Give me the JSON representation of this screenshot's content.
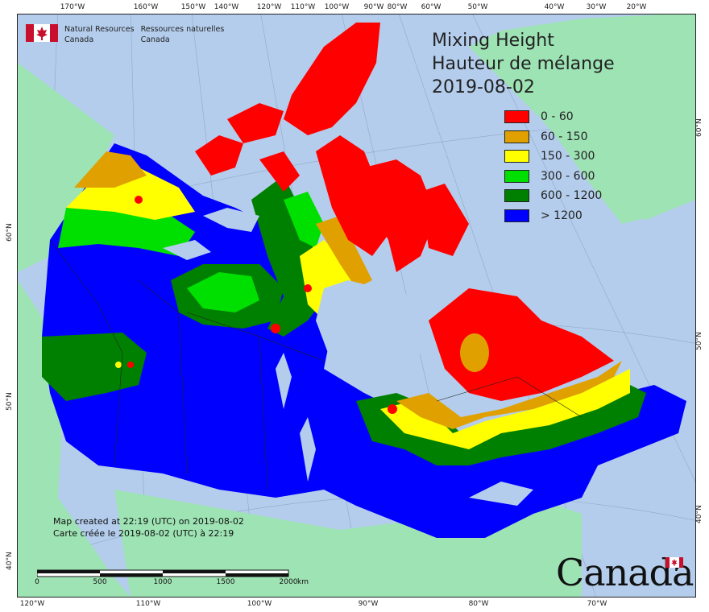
{
  "title": [
    "Mixing Height",
    "Hauteur de mélange",
    "2019-08-02"
  ],
  "agency": {
    "en_line1": "Natural Resources",
    "en_line2": "Canada",
    "fr_line1": "Ressources naturelles",
    "fr_line2": "Canada"
  },
  "legend": [
    {
      "label": "0 - 60",
      "color": "#ff0000"
    },
    {
      "label": "60 - 150",
      "color": "#e0a000"
    },
    {
      "label": "150 - 300",
      "color": "#ffff00"
    },
    {
      "label": "300 - 600",
      "color": "#00e000"
    },
    {
      "label": "600 - 1200",
      "color": "#008000"
    },
    {
      "label": "> 1200",
      "color": "#0000ff"
    }
  ],
  "credit": {
    "en": "Map created at 22:19 (UTC) on 2019-08-02",
    "fr": "Carte créée le 2019-08-02 (UTC) à 22:19"
  },
  "top_ticks": [
    "170°W",
    "160°W",
    "150°W",
    "140°W",
    "120°W",
    "110°W",
    "100°W",
    "90°W",
    "80°W",
    "60°W",
    "50°W",
    "40°W",
    "30°W",
    "20°W"
  ],
  "bottom_ticks": [
    "120°W",
    "110°W",
    "100°W",
    "90°W",
    "80°W",
    "70°W"
  ],
  "left_ticks": [
    "60°N",
    "50°N",
    "40°N"
  ],
  "right_ticks": [
    "60°N",
    "50°N",
    "40°N"
  ],
  "scale": {
    "labels": [
      "0",
      "500",
      "1000",
      "1500",
      "2000"
    ],
    "unit": "km"
  },
  "wordmark": "Canada",
  "colors": {
    "water": "#b4cdec",
    "land_outside": "#9ee3b4",
    "border": "#222222"
  }
}
